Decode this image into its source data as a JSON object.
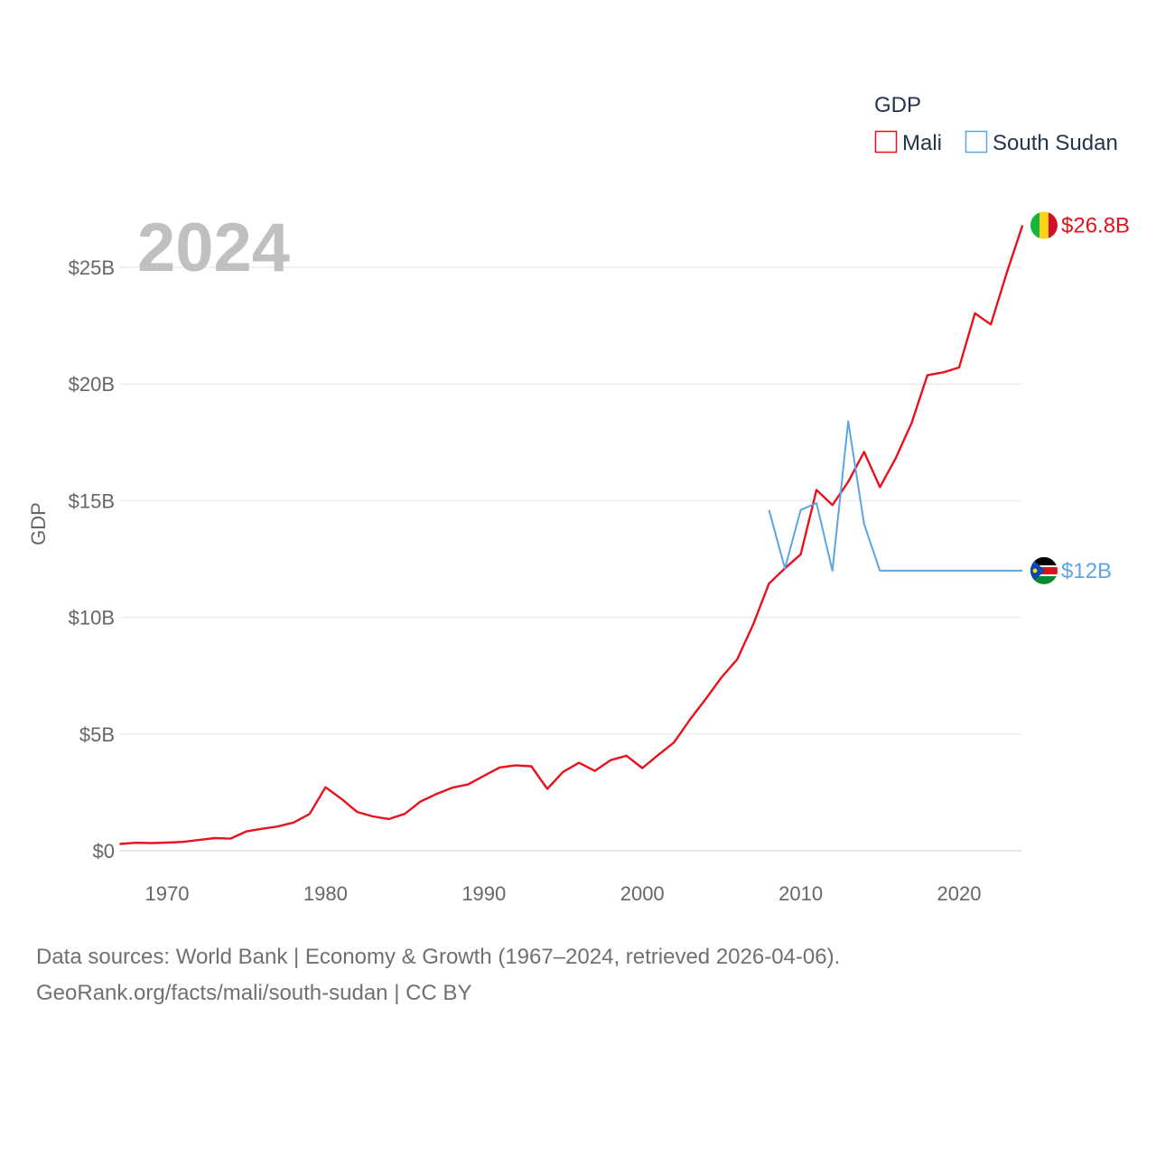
{
  "chart_data": {
    "type": "line",
    "year_label": "2024",
    "ylabel": "GDP",
    "xlim": [
      1967,
      2024
    ],
    "ylim": [
      0,
      27
    ],
    "x_ticks": [
      1970,
      1980,
      1990,
      2000,
      2010,
      2020
    ],
    "x_tick_labels": [
      "1970",
      "1980",
      "1990",
      "2000",
      "2010",
      "2020"
    ],
    "y_ticks": [
      0,
      5,
      10,
      15,
      20,
      25
    ],
    "y_tick_labels": [
      "$0",
      "$5B",
      "$10B",
      "$15B",
      "$20B",
      "$25B"
    ],
    "legend": {
      "title": "GDP",
      "position": "top-right"
    },
    "series": [
      {
        "name": "Mali",
        "color": "#e8111e",
        "end_label": "$26.8B",
        "flag_icon": "mali-flag-icon",
        "x": [
          1967,
          1968,
          1969,
          1970,
          1971,
          1972,
          1973,
          1974,
          1975,
          1976,
          1977,
          1978,
          1979,
          1980,
          1981,
          1982,
          1983,
          1984,
          1985,
          1986,
          1987,
          1988,
          1989,
          1990,
          1991,
          1992,
          1993,
          1994,
          1995,
          1996,
          1997,
          1998,
          1999,
          2000,
          2001,
          2002,
          2003,
          2004,
          2005,
          2006,
          2007,
          2008,
          2009,
          2010,
          2011,
          2012,
          2013,
          2014,
          2015,
          2016,
          2017,
          2018,
          2019,
          2020,
          2021,
          2022,
          2023,
          2024
        ],
        "values": [
          0.29,
          0.34,
          0.33,
          0.35,
          0.38,
          0.46,
          0.54,
          0.52,
          0.83,
          0.94,
          1.04,
          1.21,
          1.58,
          2.72,
          2.23,
          1.66,
          1.47,
          1.36,
          1.58,
          2.11,
          2.43,
          2.7,
          2.84,
          3.21,
          3.57,
          3.66,
          3.62,
          2.65,
          3.38,
          3.77,
          3.42,
          3.88,
          4.07,
          3.54,
          4.1,
          4.64,
          5.61,
          6.5,
          7.43,
          8.21,
          9.7,
          11.45,
          12.1,
          12.7,
          15.46,
          14.81,
          15.81,
          17.09,
          15.58,
          16.82,
          18.33,
          20.38,
          20.5,
          20.71,
          23.03,
          22.55,
          24.75,
          26.8
        ]
      },
      {
        "name": "South Sudan",
        "color": "#5ba4e6",
        "end_label": "$12B",
        "flag_icon": "south-sudan-flag-icon",
        "x": [
          2008,
          2009,
          2010,
          2011,
          2012,
          2013,
          2014,
          2015,
          2016,
          2017,
          2018,
          2019,
          2020,
          2021,
          2022,
          2023,
          2024
        ],
        "values": [
          14.6,
          12.1,
          14.6,
          14.9,
          12.0,
          18.4,
          14.0,
          12.0,
          12.0,
          12.0,
          12.0,
          12.0,
          12.0,
          12.0,
          12.0,
          12.0,
          12.0
        ]
      }
    ]
  },
  "footer": {
    "line1": "Data sources: World Bank | Economy & Growth (1967–2024, retrieved 2026-04-06).",
    "line2": "GeoRank.org/facts/mali/south-sudan | CC BY"
  }
}
